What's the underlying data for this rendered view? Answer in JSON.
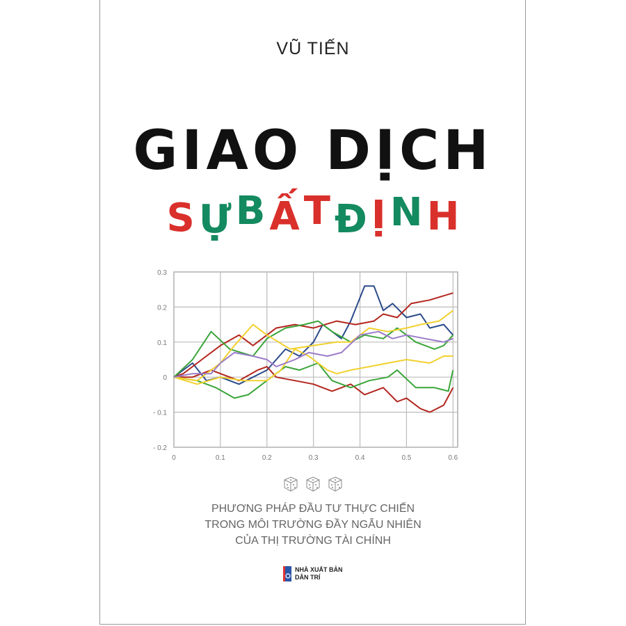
{
  "author": "VŨ TIẾN",
  "title_line1": "GIAO DỊCH",
  "title_line2_letters": [
    {
      "ch": "S",
      "color": "#d9302c"
    },
    {
      "ch": "Ự",
      "color": "#138a5f"
    },
    {
      "ch": "B",
      "color": "#138a5f"
    },
    {
      "ch": "Ấ",
      "color": "#d9302c"
    },
    {
      "ch": "T",
      "color": "#d9302c"
    },
    {
      "ch": "Đ",
      "color": "#138a5f"
    },
    {
      "ch": "Ị",
      "color": "#d9302c"
    },
    {
      "ch": "N",
      "color": "#138a5f"
    },
    {
      "ch": "H",
      "color": "#d9302c"
    }
  ],
  "title_line2": "SỰ BẤT ĐỊNH",
  "dice_icons": [
    "dice-icon",
    "dice-icon",
    "dice-icon"
  ],
  "subtitle": [
    "PHƯƠNG PHÁP ĐẦU TƯ THỰC CHIẾN",
    "TRONG MÔI TRƯỜNG ĐẦY NGẪU NHIÊN",
    "CỦA THỊ TRƯỜNG TÀI CHÍNH"
  ],
  "publisher": {
    "line1": "NHÀ XUẤT BẢN",
    "line2": "DÂN TRÍ",
    "logo_color": "#2a56a8"
  },
  "chart_data": {
    "type": "line",
    "xlim": [
      0,
      0.61
    ],
    "ylim": [
      -0.2,
      0.3
    ],
    "grid": true,
    "xticks": [
      "0",
      "0.1",
      "0.2",
      "0.3",
      "0.4",
      "0.5",
      "0.6"
    ],
    "yticks": [
      "0.3",
      "0.2",
      "0.1",
      "0",
      "- 0.1",
      "- 0.2"
    ],
    "series": [
      {
        "color": "#2a4a8a",
        "points": [
          [
            0,
            0
          ],
          [
            0.04,
            0.04
          ],
          [
            0.07,
            -0.01
          ],
          [
            0.1,
            0
          ],
          [
            0.14,
            -0.02
          ],
          [
            0.2,
            0.02
          ],
          [
            0.24,
            0.08
          ],
          [
            0.27,
            0.06
          ],
          [
            0.3,
            0.1
          ],
          [
            0.32,
            0.15
          ],
          [
            0.36,
            0.11
          ],
          [
            0.38,
            0.16
          ],
          [
            0.41,
            0.26
          ],
          [
            0.43,
            0.26
          ],
          [
            0.45,
            0.19
          ],
          [
            0.47,
            0.21
          ],
          [
            0.5,
            0.17
          ],
          [
            0.53,
            0.18
          ],
          [
            0.55,
            0.14
          ],
          [
            0.58,
            0.15
          ],
          [
            0.6,
            0.12
          ]
        ]
      },
      {
        "color": "#b3261e",
        "points": [
          [
            0,
            0
          ],
          [
            0.02,
            0.01
          ],
          [
            0.06,
            0.05
          ],
          [
            0.1,
            0.09
          ],
          [
            0.14,
            0.12
          ],
          [
            0.17,
            0.09
          ],
          [
            0.22,
            0.14
          ],
          [
            0.26,
            0.15
          ],
          [
            0.3,
            0.14
          ],
          [
            0.35,
            0.16
          ],
          [
            0.39,
            0.15
          ],
          [
            0.43,
            0.16
          ],
          [
            0.45,
            0.18
          ],
          [
            0.48,
            0.17
          ],
          [
            0.51,
            0.21
          ],
          [
            0.55,
            0.22
          ],
          [
            0.6,
            0.24
          ]
        ]
      },
      {
        "color": "#b3261e",
        "points": [
          [
            0,
            0
          ],
          [
            0.04,
            0
          ],
          [
            0.08,
            0.02
          ],
          [
            0.1,
            0.01
          ],
          [
            0.14,
            -0.01
          ],
          [
            0.18,
            0.02
          ],
          [
            0.2,
            0.03
          ],
          [
            0.22,
            0
          ],
          [
            0.26,
            -0.01
          ],
          [
            0.3,
            -0.02
          ],
          [
            0.34,
            -0.04
          ],
          [
            0.38,
            -0.02
          ],
          [
            0.41,
            -0.05
          ],
          [
            0.45,
            -0.03
          ],
          [
            0.48,
            -0.07
          ],
          [
            0.5,
            -0.06
          ],
          [
            0.53,
            -0.09
          ],
          [
            0.55,
            -0.1
          ],
          [
            0.58,
            -0.08
          ],
          [
            0.6,
            -0.03
          ]
        ]
      },
      {
        "color": "#3aa53a",
        "points": [
          [
            0,
            0
          ],
          [
            0.04,
            0.05
          ],
          [
            0.08,
            0.13
          ],
          [
            0.12,
            0.08
          ],
          [
            0.17,
            0.06
          ],
          [
            0.2,
            0.11
          ],
          [
            0.24,
            0.14
          ],
          [
            0.28,
            0.15
          ],
          [
            0.31,
            0.16
          ],
          [
            0.34,
            0.13
          ],
          [
            0.38,
            0.1
          ],
          [
            0.41,
            0.12
          ],
          [
            0.45,
            0.11
          ],
          [
            0.48,
            0.14
          ],
          [
            0.52,
            0.1
          ],
          [
            0.56,
            0.08
          ],
          [
            0.58,
            0.09
          ],
          [
            0.6,
            0.12
          ]
        ]
      },
      {
        "color": "#3aa53a",
        "points": [
          [
            0,
            0
          ],
          [
            0.05,
            -0.01
          ],
          [
            0.09,
            -0.03
          ],
          [
            0.13,
            -0.06
          ],
          [
            0.16,
            -0.05
          ],
          [
            0.2,
            -0.01
          ],
          [
            0.24,
            0.03
          ],
          [
            0.27,
            0.02
          ],
          [
            0.31,
            0.04
          ],
          [
            0.34,
            -0.01
          ],
          [
            0.38,
            -0.03
          ],
          [
            0.42,
            -0.01
          ],
          [
            0.46,
            0
          ],
          [
            0.48,
            0.02
          ],
          [
            0.52,
            -0.03
          ],
          [
            0.56,
            -0.03
          ],
          [
            0.59,
            -0.04
          ],
          [
            0.6,
            0.02
          ]
        ]
      },
      {
        "color": "#f2d12e",
        "points": [
          [
            0,
            0
          ],
          [
            0.05,
            -0.01
          ],
          [
            0.1,
            0.04
          ],
          [
            0.13,
            0.09
          ],
          [
            0.17,
            0.15
          ],
          [
            0.2,
            0.12
          ],
          [
            0.25,
            0.08
          ],
          [
            0.3,
            0.09
          ],
          [
            0.35,
            0.1
          ],
          [
            0.38,
            0.1
          ],
          [
            0.42,
            0.14
          ],
          [
            0.46,
            0.13
          ],
          [
            0.5,
            0.14
          ],
          [
            0.53,
            0.15
          ],
          [
            0.57,
            0.16
          ],
          [
            0.6,
            0.19
          ]
        ]
      },
      {
        "color": "#f2d12e",
        "points": [
          [
            0,
            0
          ],
          [
            0.05,
            -0.02
          ],
          [
            0.1,
            0
          ],
          [
            0.15,
            -0.01
          ],
          [
            0.2,
            -0.01
          ],
          [
            0.23,
            0.02
          ],
          [
            0.26,
            0.08
          ],
          [
            0.29,
            0.06
          ],
          [
            0.33,
            0.02
          ],
          [
            0.35,
            0.01
          ],
          [
            0.38,
            0.02
          ],
          [
            0.42,
            0.03
          ],
          [
            0.46,
            0.04
          ],
          [
            0.5,
            0.05
          ],
          [
            0.55,
            0.04
          ],
          [
            0.58,
            0.06
          ],
          [
            0.6,
            0.06
          ]
        ]
      },
      {
        "color": "#9b7bc9",
        "points": [
          [
            0,
            0
          ],
          [
            0.04,
            0.01
          ],
          [
            0.08,
            0.01
          ],
          [
            0.1,
            0.04
          ],
          [
            0.13,
            0.07
          ],
          [
            0.17,
            0.06
          ],
          [
            0.2,
            0.05
          ],
          [
            0.22,
            0.03
          ],
          [
            0.26,
            0.05
          ],
          [
            0.29,
            0.07
          ],
          [
            0.33,
            0.06
          ],
          [
            0.36,
            0.07
          ],
          [
            0.4,
            0.12
          ],
          [
            0.44,
            0.13
          ],
          [
            0.47,
            0.11
          ],
          [
            0.5,
            0.12
          ],
          [
            0.54,
            0.11
          ],
          [
            0.58,
            0.1
          ],
          [
            0.6,
            0.11
          ]
        ]
      }
    ]
  }
}
